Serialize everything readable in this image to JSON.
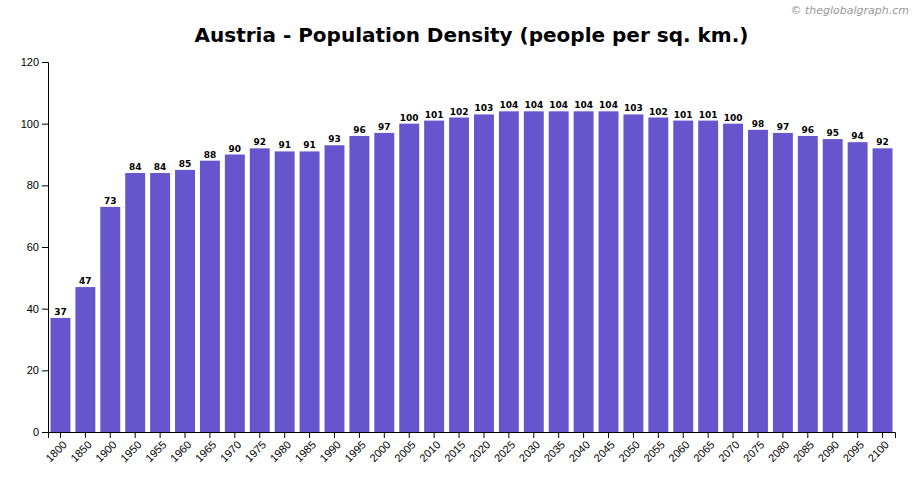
{
  "chart_data": {
    "type": "bar",
    "title": "Austria - Population Density (people per sq. km.)",
    "annotations": [
      "© theglobalgraph.cm"
    ],
    "categories": [
      1800,
      1850,
      1900,
      1950,
      1955,
      1960,
      1965,
      1970,
      1975,
      1980,
      1985,
      1990,
      1995,
      2000,
      2005,
      2010,
      2015,
      2020,
      2025,
      2030,
      2035,
      2040,
      2045,
      2050,
      2055,
      2060,
      2065,
      2070,
      2075,
      2080,
      2085,
      2090,
      2095,
      2100
    ],
    "values": [
      37,
      47,
      73,
      84,
      84,
      85,
      88,
      90,
      92,
      91,
      91,
      93,
      96,
      97,
      100,
      101,
      102,
      103,
      104,
      104,
      104,
      104,
      104,
      103,
      102,
      101,
      101,
      100,
      98,
      97,
      96,
      95,
      94,
      92
    ],
    "color": "#6655cc",
    "ylim": [
      0,
      120
    ],
    "yticks": [
      0,
      20,
      40,
      60,
      80,
      100,
      120
    ],
    "grid": false,
    "data_labels": true
  }
}
